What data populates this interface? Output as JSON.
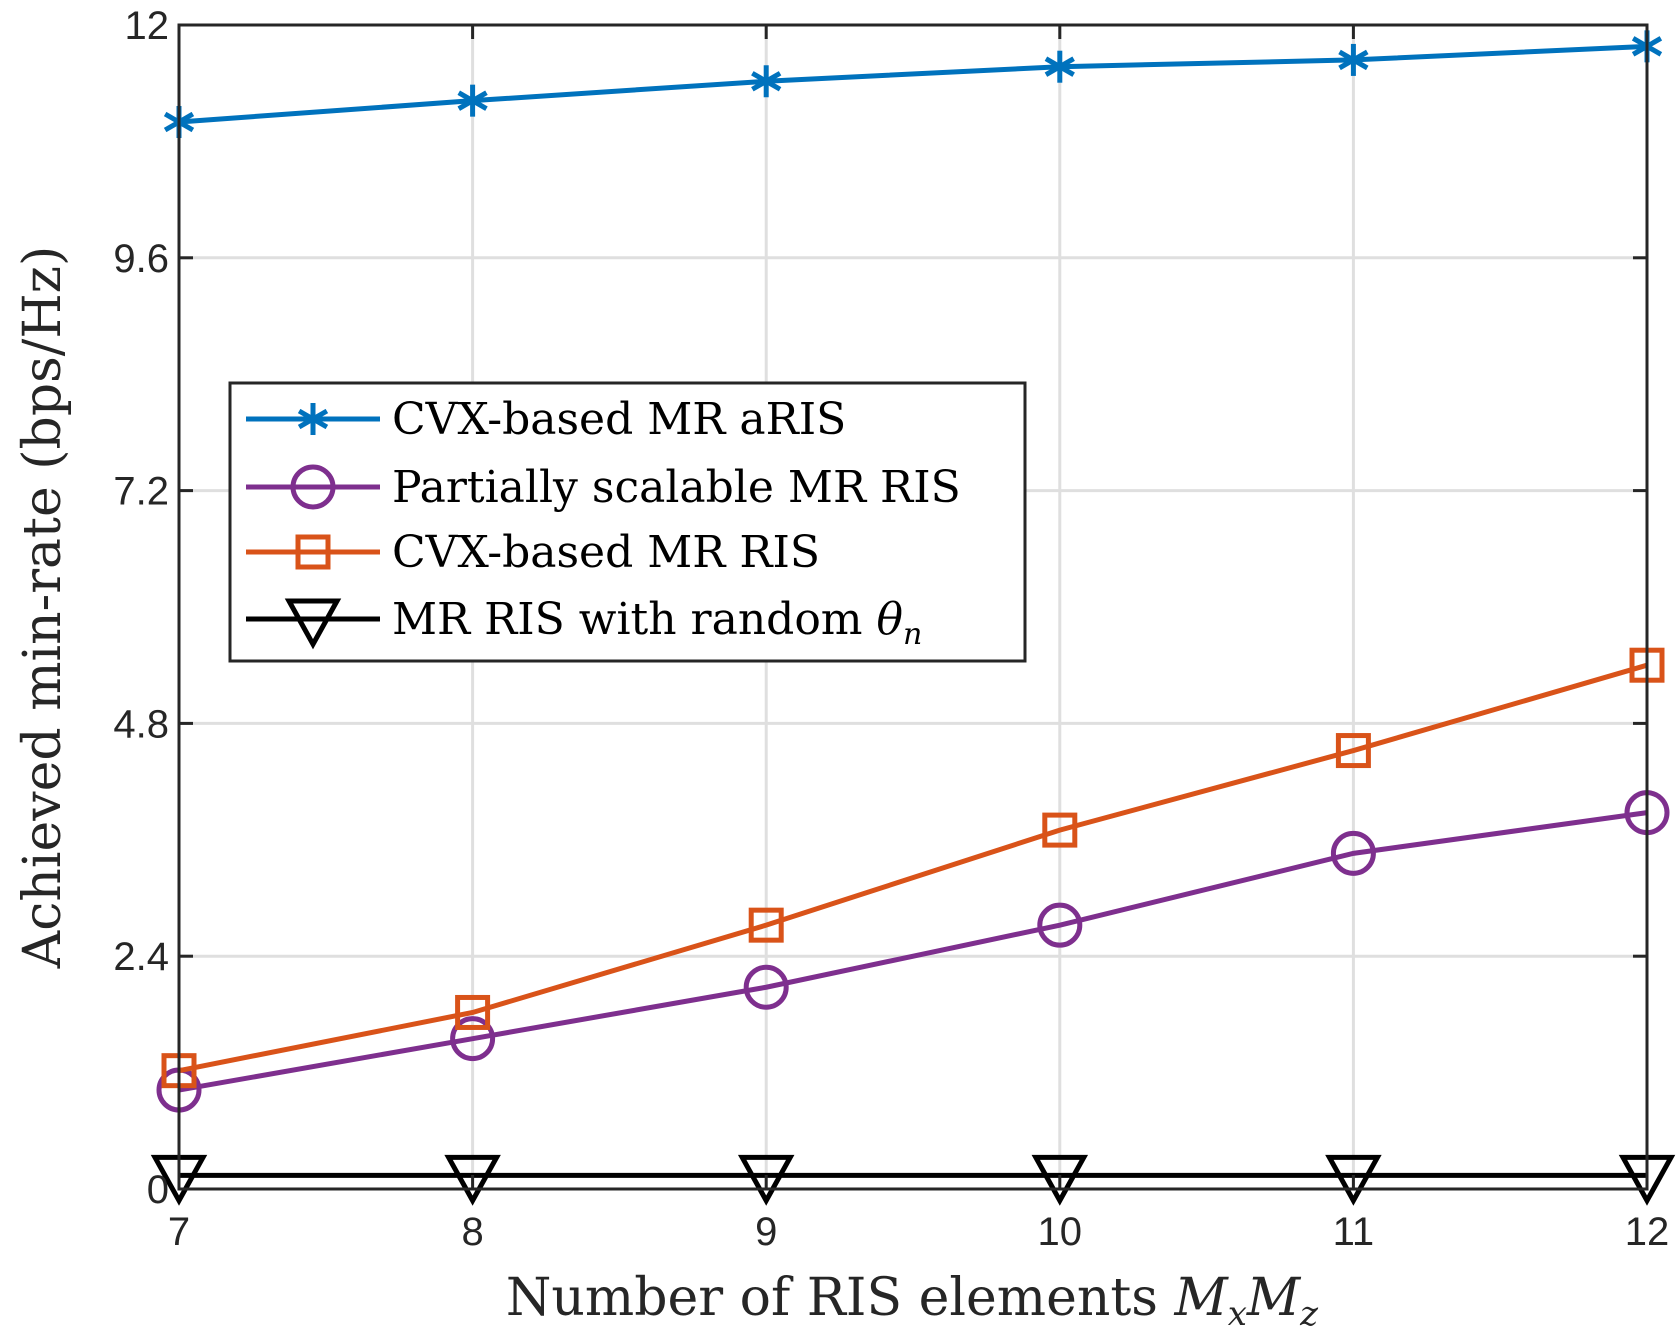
{
  "chart_data": {
    "type": "line",
    "title": "",
    "xlabel": "Number of RIS elements",
    "xlabel_math": {
      "base1": "M",
      "sub1": "x",
      "base2": "M",
      "sub2": "z"
    },
    "ylabel": "Achieved min-rate (bps/Hz)",
    "x": [
      7,
      8,
      9,
      10,
      11,
      12
    ],
    "xlim": [
      7,
      12
    ],
    "ylim": [
      0,
      12
    ],
    "xticks": [
      "7",
      "8",
      "9",
      "10",
      "11",
      "12"
    ],
    "yticks": [
      {
        "value": 0,
        "label": "0"
      },
      {
        "value": 2.4,
        "label": "2.4"
      },
      {
        "value": 4.8,
        "label": "4.8"
      },
      {
        "value": 7.2,
        "label": "7.2"
      },
      {
        "value": 9.6,
        "label": "9.6"
      },
      {
        "value": 12,
        "label": "12"
      }
    ],
    "grid": true,
    "legend_position": "upper-left-center",
    "series": [
      {
        "name": "CVX-based MR aRIS",
        "color": "#0072BD",
        "marker": "asterisk",
        "values": [
          11.0,
          11.22,
          11.42,
          11.57,
          11.64,
          11.78
        ]
      },
      {
        "name": "Partially scalable MR RIS",
        "color": "#7E2F8E",
        "marker": "circle",
        "values": [
          1.02,
          1.55,
          2.08,
          2.72,
          3.46,
          3.88
        ]
      },
      {
        "name": "CVX-based MR RIS",
        "color": "#D95319",
        "marker": "square",
        "values": [
          1.22,
          1.82,
          2.72,
          3.7,
          4.52,
          5.4
        ]
      },
      {
        "name": "MR RIS with random",
        "name_math": {
          "base": "θ",
          "sub": "n"
        },
        "color": "#000000",
        "marker": "triangle-down",
        "values": [
          0.14,
          0.14,
          0.14,
          0.14,
          0.14,
          0.14
        ]
      }
    ]
  }
}
